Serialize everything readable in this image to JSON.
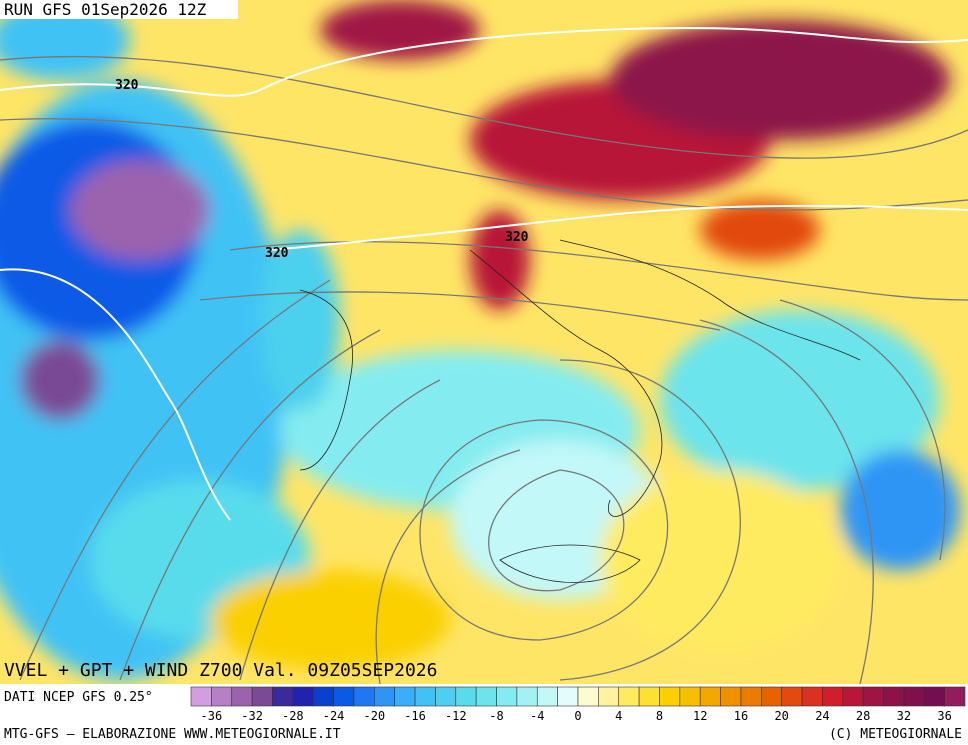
{
  "header": {
    "run": "RUN GFS 01Sep2026 12Z"
  },
  "map": {
    "contour_labels": [
      "320",
      "320",
      "320"
    ]
  },
  "footer": {
    "title": "VVEL + GPT + WIND Z700 Val. 09Z05SEP2026",
    "source": "DATI NCEP GFS 0.25°",
    "credit": "MTG-GFS – ELABORAZIONE WWW.METEOGIORNALE.IT",
    "copyright": "(C) METEOGIORNALE"
  },
  "legend": {
    "ticks": [
      "-36",
      "-32",
      "-28",
      "-24",
      "-20",
      "-16",
      "-12",
      "-8",
      "-4",
      "0",
      "4",
      "8",
      "12",
      "16",
      "20",
      "24",
      "28",
      "32",
      "36"
    ],
    "colors": [
      "#d29ee0",
      "#b77fc6",
      "#9b63ad",
      "#7a4a95",
      "#3b2a9a",
      "#2222b0",
      "#0a3fd0",
      "#0a5ae6",
      "#1e78f0",
      "#2f95f5",
      "#3aaef7",
      "#40c2f5",
      "#4cd0ee",
      "#58dcec",
      "#6ce4ec",
      "#84ecf0",
      "#a2f2f4",
      "#c2f8f8",
      "#e4fcfc",
      "#fffbd0",
      "#fff3a0",
      "#ffeb60",
      "#fde030",
      "#fad000",
      "#f6c000",
      "#f2a800",
      "#ee9200",
      "#ea7c00",
      "#e66400",
      "#e24a10",
      "#dc3020",
      "#d01e2c",
      "#b81838",
      "#a01444",
      "#8c1248",
      "#80104c",
      "#740e50",
      "#941c5c"
    ]
  }
}
